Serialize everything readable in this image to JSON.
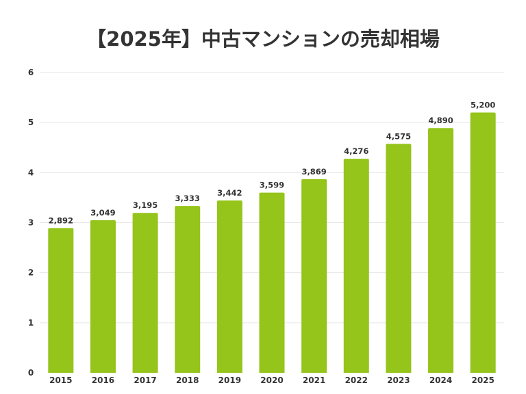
{
  "chart_data": {
    "type": "bar",
    "title": "【2025年】中古マンションの売却相場",
    "xlabel": "",
    "ylabel": "",
    "categories": [
      "2015",
      "2016",
      "2017",
      "2018",
      "2019",
      "2020",
      "2021",
      "2022",
      "2023",
      "2024",
      "2025"
    ],
    "values": [
      2.892,
      3.049,
      3.195,
      3.333,
      3.442,
      3.599,
      3.869,
      4.276,
      4.575,
      4.89,
      5.2
    ],
    "value_labels": [
      "2,892",
      "3,049",
      "3,195",
      "3,333",
      "3,442",
      "3,599",
      "3,869",
      "4,276",
      "4,575",
      "4,890",
      "5,200"
    ],
    "ylim": [
      0,
      6
    ],
    "yticks": [
      "0",
      "1",
      "2",
      "3",
      "4",
      "5",
      "6"
    ],
    "grid": true,
    "legend": "none",
    "bar_color": "#95c41a"
  }
}
